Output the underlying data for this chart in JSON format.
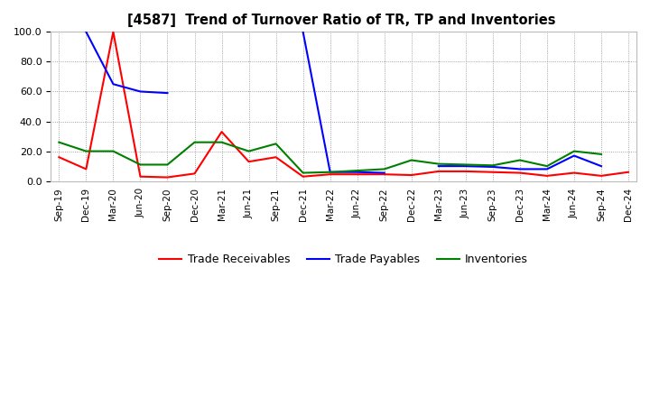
{
  "title": "[4587]  Trend of Turnover Ratio of TR, TP and Inventories",
  "xlabels": [
    "Sep-19",
    "Dec-19",
    "Mar-20",
    "Jun-20",
    "Sep-20",
    "Dec-20",
    "Mar-21",
    "Jun-21",
    "Sep-21",
    "Dec-21",
    "Mar-22",
    "Jun-22",
    "Sep-22",
    "Dec-22",
    "Mar-23",
    "Jun-23",
    "Sep-23",
    "Dec-23",
    "Mar-24",
    "Jun-24",
    "Sep-24",
    "Dec-24"
  ],
  "trade_receivables": [
    16.0,
    8.0,
    100.0,
    3.0,
    2.5,
    5.0,
    33.0,
    13.0,
    16.0,
    3.0,
    4.5,
    4.5,
    4.5,
    4.0,
    6.5,
    6.5,
    6.0,
    5.5,
    3.5,
    5.5,
    3.5,
    6.0
  ],
  "trade_payables": [
    null,
    100.0,
    65.0,
    60.0,
    59.0,
    null,
    null,
    null,
    null,
    100.0,
    6.0,
    6.0,
    5.5,
    null,
    10.0,
    10.0,
    9.5,
    8.0,
    8.0,
    17.0,
    10.0,
    null
  ],
  "inventories": [
    26.0,
    20.0,
    20.0,
    11.0,
    11.0,
    26.0,
    26.0,
    20.0,
    25.0,
    5.5,
    6.0,
    7.0,
    8.0,
    14.0,
    11.5,
    11.0,
    10.5,
    14.0,
    10.0,
    20.0,
    18.0,
    null
  ],
  "ylim": [
    0.0,
    100.0
  ],
  "yticks": [
    0.0,
    20.0,
    40.0,
    60.0,
    80.0,
    100.0
  ],
  "color_tr": "#FF0000",
  "color_tp": "#0000FF",
  "color_inv": "#008000",
  "legend_tr": "Trade Receivables",
  "legend_tp": "Trade Payables",
  "legend_inv": "Inventories",
  "background_color": "#FFFFFF",
  "grid_color": "#888888"
}
